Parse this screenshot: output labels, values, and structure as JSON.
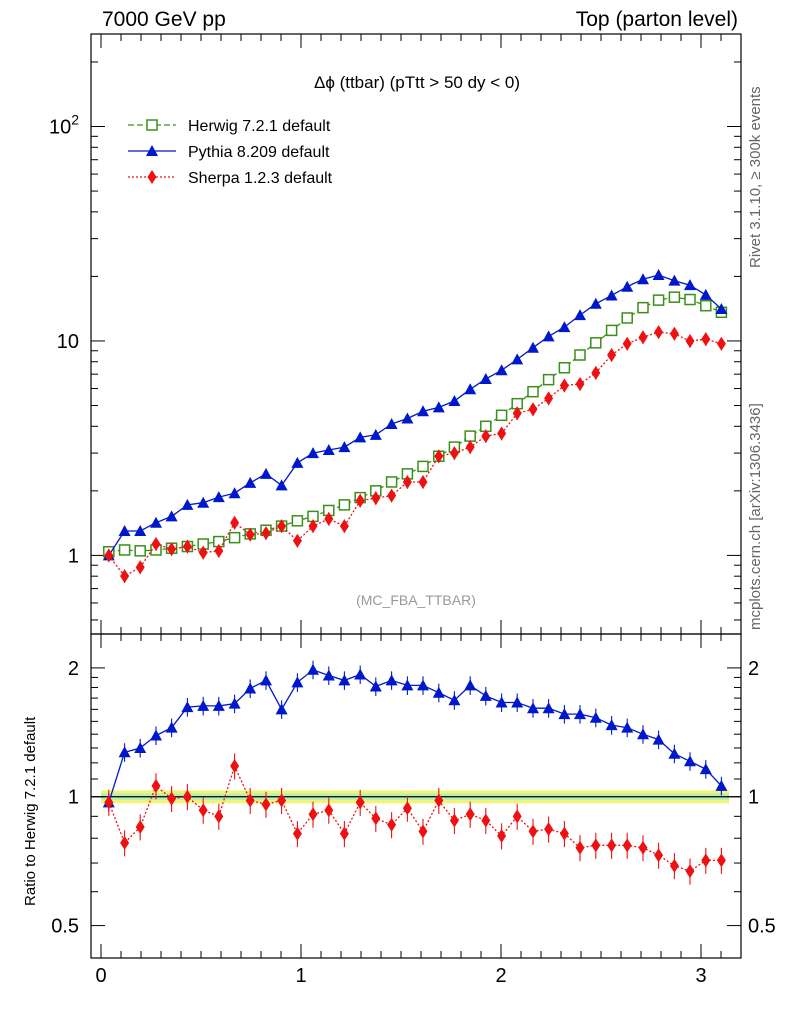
{
  "header": {
    "left": "7000 GeV pp",
    "right": "Top (parton level)"
  },
  "side_labels": {
    "top": "Rivet 3.1.10, ≥ 300k events",
    "bottom": "mcplots.cern.ch [arXiv:1306.3436]"
  },
  "colors": {
    "herwig": "#3a8f1a",
    "pythia": "#0018cc",
    "sherpa": "#ee1111",
    "band_outer": "#f4f47a",
    "band_inner": "#b8f0b0"
  },
  "chart_data": [
    {
      "type": "line",
      "title": "Δϕ (ttbar) (pTtt > 50 dy < 0)",
      "watermark": "(MC_FBA_TTBAR)",
      "xlim": [
        -0.05,
        3.2
      ],
      "ylim": [
        0.43,
        270
      ],
      "log_y": true,
      "x_ticks": [
        "0",
        "1",
        "2",
        "3"
      ],
      "y_ticks": [
        "1",
        "10",
        "10^2"
      ],
      "legend_position": "top-left",
      "x": [
        0.039,
        0.118,
        0.196,
        0.275,
        0.353,
        0.432,
        0.511,
        0.589,
        0.668,
        0.746,
        0.825,
        0.903,
        0.982,
        1.06,
        1.139,
        1.217,
        1.296,
        1.374,
        1.453,
        1.532,
        1.61,
        1.689,
        1.767,
        1.846,
        1.924,
        2.003,
        2.081,
        2.16,
        2.238,
        2.317,
        2.395,
        2.474,
        2.553,
        2.631,
        2.71,
        2.788,
        2.867,
        2.945,
        3.024,
        3.102
      ],
      "series": [
        {
          "name": "Herwig 7.2.1 default",
          "marker": "open-square",
          "style": "dashed",
          "values": [
            1.04,
            1.06,
            1.05,
            1.06,
            1.08,
            1.1,
            1.13,
            1.16,
            1.21,
            1.26,
            1.31,
            1.37,
            1.45,
            1.52,
            1.62,
            1.72,
            1.86,
            2.0,
            2.2,
            2.4,
            2.6,
            2.9,
            3.2,
            3.6,
            4.0,
            4.5,
            5.1,
            5.8,
            6.6,
            7.5,
            8.6,
            9.8,
            11.2,
            12.8,
            14.3,
            15.5,
            16.0,
            15.6,
            14.6,
            13.6
          ]
        },
        {
          "name": "Pythia 8.209 default",
          "marker": "filled-triangle",
          "style": "solid",
          "values": [
            1.0,
            1.3,
            1.3,
            1.42,
            1.52,
            1.72,
            1.76,
            1.87,
            1.95,
            2.18,
            2.4,
            2.12,
            2.7,
            3.0,
            3.1,
            3.2,
            3.55,
            3.65,
            4.1,
            4.35,
            4.7,
            4.9,
            5.25,
            5.95,
            6.65,
            7.3,
            8.2,
            9.3,
            10.5,
            11.6,
            13.2,
            14.9,
            16.3,
            17.9,
            19.4,
            20.3,
            19.1,
            18.2,
            16.4,
            14.1
          ]
        },
        {
          "name": "Sherpa 1.2.3 default",
          "marker": "filled-diamond",
          "style": "dotted",
          "values": [
            1.0,
            0.8,
            0.88,
            1.13,
            1.07,
            1.1,
            1.03,
            1.05,
            1.42,
            1.25,
            1.27,
            1.37,
            1.17,
            1.37,
            1.48,
            1.37,
            1.8,
            1.85,
            1.9,
            2.2,
            2.2,
            2.9,
            3.0,
            3.2,
            3.6,
            3.7,
            4.6,
            4.8,
            5.4,
            6.2,
            6.3,
            7.1,
            8.6,
            9.7,
            10.4,
            11.0,
            10.8,
            10.0,
            10.2,
            9.7
          ]
        }
      ]
    },
    {
      "type": "line",
      "ylabel": "Ratio to Herwig 7.2.1 default",
      "xlim": [
        -0.05,
        3.2
      ],
      "ylim": [
        0.42,
        2.4
      ],
      "log_y": true,
      "y_ticks": [
        "0.5",
        "1",
        "2"
      ],
      "reference_line": 1,
      "series": [
        {
          "name": "Pythia 8.209 default",
          "values": [
            0.97,
            1.27,
            1.3,
            1.39,
            1.45,
            1.62,
            1.63,
            1.63,
            1.65,
            1.79,
            1.87,
            1.6,
            1.85,
            1.98,
            1.92,
            1.87,
            1.93,
            1.81,
            1.87,
            1.82,
            1.82,
            1.75,
            1.68,
            1.82,
            1.72,
            1.66,
            1.66,
            1.61,
            1.61,
            1.56,
            1.56,
            1.53,
            1.47,
            1.45,
            1.4,
            1.36,
            1.26,
            1.21,
            1.16,
            1.06
          ]
        },
        {
          "name": "Sherpa 1.2.3 default",
          "values": [
            0.97,
            0.78,
            0.85,
            1.06,
            0.99,
            1.0,
            0.93,
            0.9,
            1.18,
            0.98,
            0.96,
            0.98,
            0.82,
            0.91,
            0.93,
            0.82,
            0.97,
            0.89,
            0.86,
            0.94,
            0.83,
            0.98,
            0.88,
            0.91,
            0.88,
            0.81,
            0.9,
            0.83,
            0.84,
            0.82,
            0.76,
            0.77,
            0.77,
            0.77,
            0.76,
            0.73,
            0.69,
            0.67,
            0.71,
            0.71
          ]
        }
      ]
    }
  ]
}
